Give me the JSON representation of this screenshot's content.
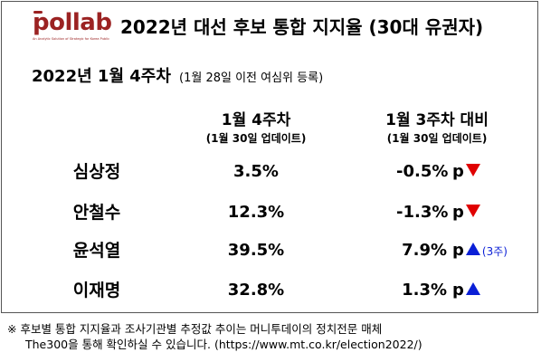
{
  "logo": {
    "text": "pollab",
    "tagline": "An Analytic Solution of Strategic for Korea Public",
    "color": "#9b2222"
  },
  "title": "2022년 대선 후보 통합 지지율 (30대 유권자)",
  "week": {
    "label": "2022년 1월 4주차",
    "note": "(1월 28일 이전 여심위 등록)"
  },
  "columns": [
    {
      "label": "1월 4주차",
      "sub": "(1월 30일 업데이트)"
    },
    {
      "label": "1월 3주차 대비",
      "sub": "(1월 30일 업데이트)"
    }
  ],
  "rows": [
    {
      "name": "심상정",
      "value": "3.5%",
      "change": "-0.5%",
      "p": "p",
      "direction": "down",
      "streak": ""
    },
    {
      "name": "안철수",
      "value": "12.3%",
      "change": "-1.3%",
      "p": "p",
      "direction": "down",
      "streak": ""
    },
    {
      "name": "윤석열",
      "value": "39.5%",
      "change": "7.9%",
      "p": "p",
      "direction": "up",
      "streak": "(3주)"
    },
    {
      "name": "이재명",
      "value": "32.8%",
      "change": "1.3%",
      "p": "p",
      "direction": "up",
      "streak": ""
    }
  ],
  "colors": {
    "down": "#e00000",
    "up": "#0a1fd6"
  },
  "footnote": {
    "line1": "※ 후보별 통합 지지율과 조사기관별 추정값 추이는 머니투데이의 정치전문 매체",
    "line2": "The300을 통해 확인하실 수 있습니다. (https://www.mt.co.kr/election2022/)"
  }
}
